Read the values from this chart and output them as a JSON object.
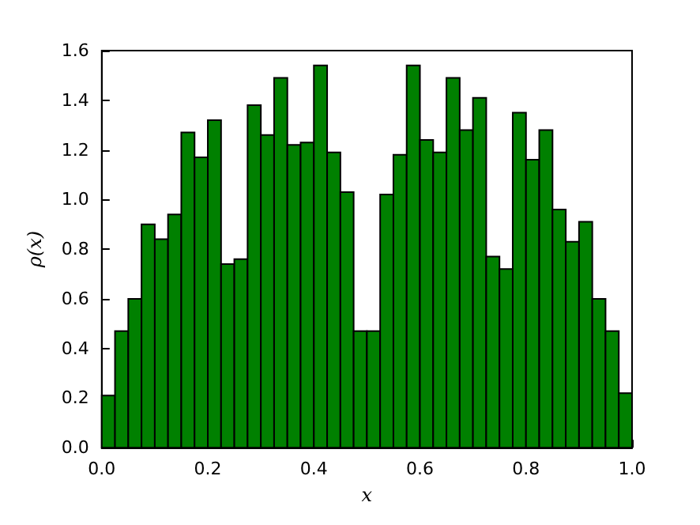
{
  "chart_data": {
    "type": "histogram",
    "xlabel": "x",
    "ylabel": "ρ(x)",
    "color": "#008000",
    "bins": [
      0,
      0.025,
      0.05,
      0.075,
      0.1,
      0.125,
      0.15,
      0.175,
      0.2,
      0.225,
      0.25,
      0.275,
      0.3,
      0.325,
      0.35,
      0.375,
      0.4,
      0.425,
      0.45,
      0.475,
      0.5,
      0.525,
      0.55,
      0.575,
      0.6,
      0.625,
      0.65,
      0.675,
      0.7,
      0.725,
      0.75,
      0.775,
      0.8,
      0.825,
      0.85,
      0.875,
      0.9,
      0.925,
      0.95,
      0.975,
      1
    ],
    "values": [
      0.21,
      0.47,
      0.6,
      0.9,
      0.84,
      0.94,
      1.27,
      1.17,
      1.32,
      0.74,
      0.76,
      1.38,
      1.26,
      1.49,
      1.22,
      1.23,
      1.54,
      1.19,
      1.03,
      0.47,
      0.47,
      1.02,
      1.18,
      1.54,
      1.24,
      1.19,
      1.49,
      1.28,
      1.41,
      0.77,
      0.72,
      1.35,
      1.16,
      1.28,
      0.96,
      0.83,
      0.91,
      0.6,
      0.47,
      0.22
    ],
    "xlim": [
      0,
      1
    ],
    "ylim": [
      0,
      1.6
    ],
    "xticks": [
      {
        "value": 0,
        "label": "0.0"
      },
      {
        "value": 0.2,
        "label": "0.2"
      },
      {
        "value": 0.4,
        "label": "0.4"
      },
      {
        "value": 0.6,
        "label": "0.6"
      },
      {
        "value": 0.8,
        "label": "0.8"
      },
      {
        "value": 1,
        "label": "1.0"
      }
    ],
    "yticks": [
      {
        "value": 0,
        "label": "0.0"
      },
      {
        "value": 0.2,
        "label": "0.2"
      },
      {
        "value": 0.4,
        "label": "0.4"
      },
      {
        "value": 0.6,
        "label": "0.6"
      },
      {
        "value": 0.8,
        "label": "0.8"
      },
      {
        "value": 1,
        "label": "1.0"
      },
      {
        "value": 1.2,
        "label": "1.2"
      },
      {
        "value": 1.4,
        "label": "1.4"
      },
      {
        "value": 1.6,
        "label": "1.6"
      }
    ],
    "grid": false
  }
}
